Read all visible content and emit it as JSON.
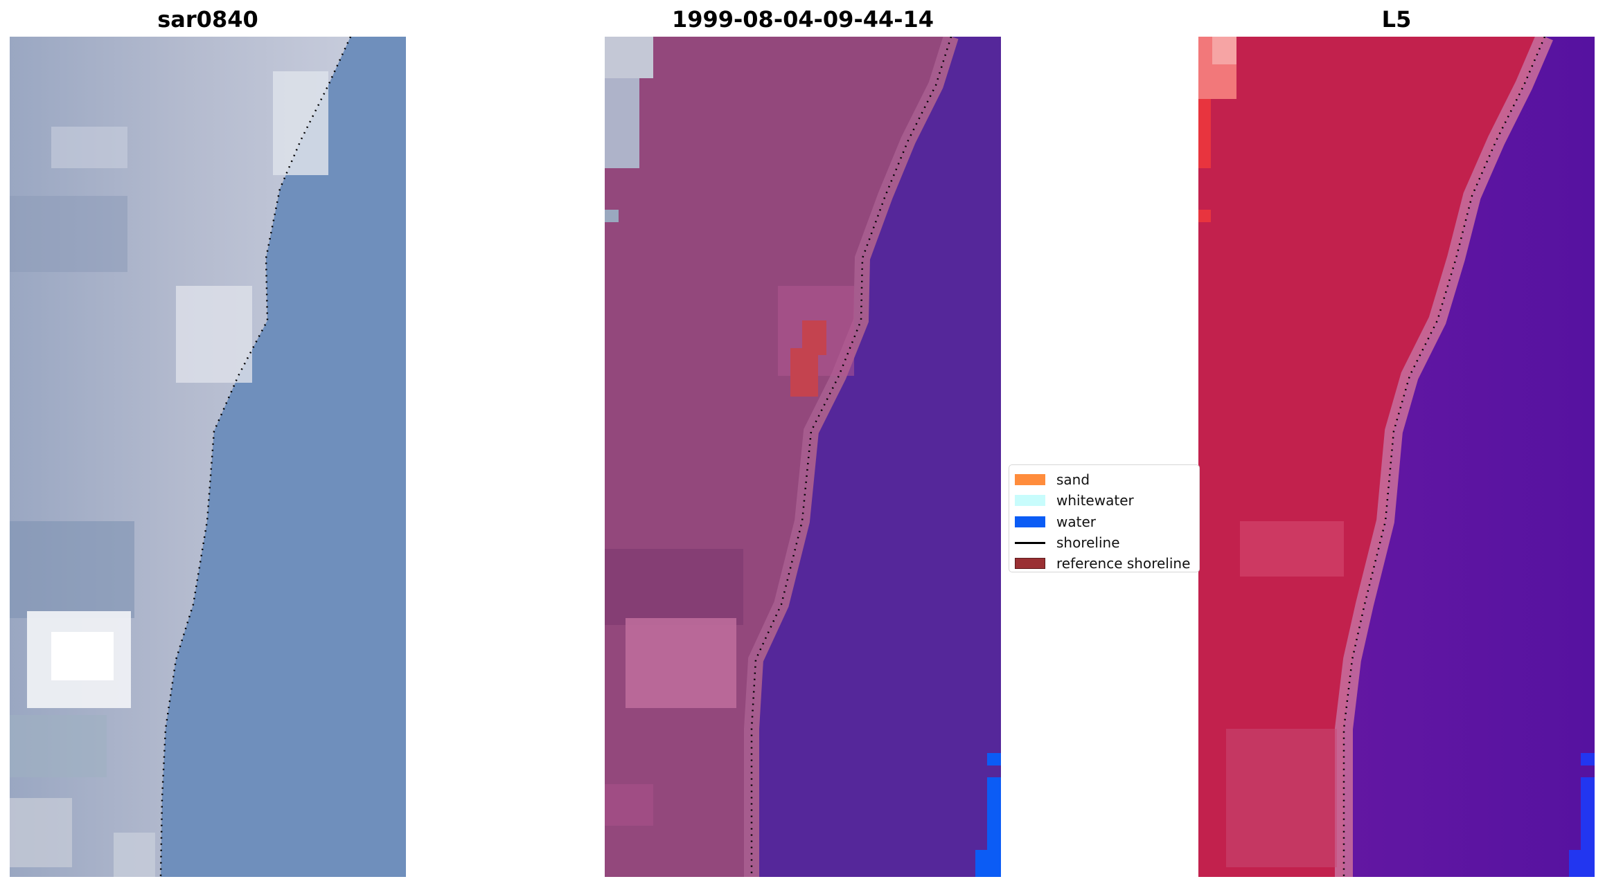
{
  "panels": [
    {
      "title": "sar0840"
    },
    {
      "title": "1999-08-04-09-44-14"
    },
    {
      "title": "L5"
    }
  ],
  "legend": {
    "items": [
      {
        "label": "sand",
        "color": "#ff8c3c",
        "kind": "patch"
      },
      {
        "label": "whitewater",
        "color": "#c8fcfc",
        "kind": "patch"
      },
      {
        "label": "water",
        "color": "#0b5cf5",
        "kind": "patch"
      },
      {
        "label": "shoreline",
        "color": "#000000",
        "kind": "line"
      },
      {
        "label": "reference shoreline",
        "color": "#9a3033",
        "kind": "patch"
      }
    ]
  },
  "colors": {
    "rgb_water": "#6e8fbc",
    "rgb_land": "#a8b1c8",
    "classified_land": "#93487c",
    "classified_water": "#55279a",
    "classified_water_pixel": "#0b5cf5",
    "nir_land": "#c2204e",
    "nir_water": "#5e14a0"
  }
}
